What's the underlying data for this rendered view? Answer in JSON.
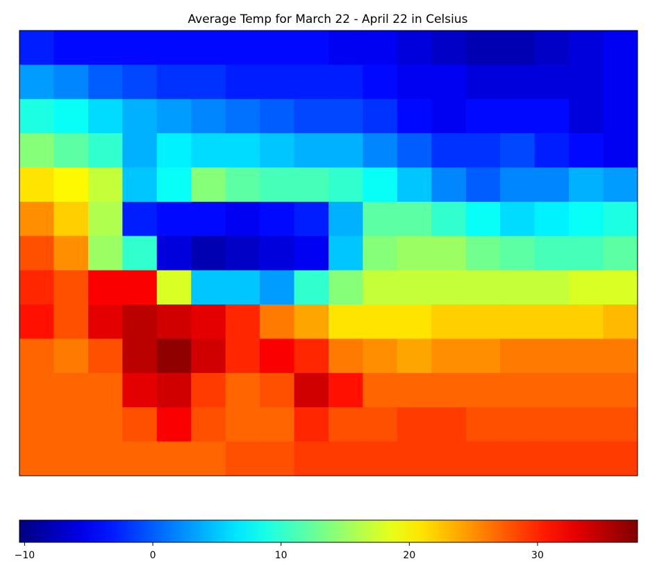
{
  "chart_data": {
    "type": "heatmap",
    "title": "Average Temp for March 22 - April 22 in Celsius",
    "colormap": "jet",
    "clim": [
      -10.4,
      37.8
    ],
    "colorbar_ticks": [
      {
        "value": -10,
        "label": "−10"
      },
      0,
      10,
      20,
      30
    ],
    "values": [
      [
        -3,
        -4,
        -4,
        -4,
        -4,
        -4,
        -4,
        -4,
        -4,
        -5,
        -5,
        -6,
        -7,
        -8,
        -8,
        -7,
        -6,
        -5
      ],
      [
        3,
        2,
        0,
        -1,
        -2,
        -2,
        -3,
        -3,
        -3,
        -3,
        -4,
        -5,
        -5,
        -6,
        -6,
        -6,
        -6,
        -5
      ],
      [
        9,
        8,
        6,
        4,
        3,
        2,
        1,
        0,
        -1,
        -1,
        -2,
        -4,
        -5,
        -4,
        -4,
        -4,
        -6,
        -5
      ],
      [
        14,
        12,
        10,
        4,
        7,
        6,
        6,
        5,
        4,
        4,
        2,
        0,
        -2,
        -2,
        -1,
        -3,
        -4,
        -5
      ],
      [
        21,
        20,
        17,
        5,
        8,
        14,
        12,
        11,
        11,
        10,
        8,
        5,
        2,
        0,
        2,
        2,
        4,
        3
      ],
      [
        25,
        22,
        16,
        -3,
        -4,
        -4,
        -5,
        -4,
        -3,
        4,
        12,
        12,
        10,
        8,
        6,
        7,
        8,
        9
      ],
      [
        28,
        25,
        15,
        10,
        -6,
        -8,
        -7,
        -6,
        -5,
        5,
        14,
        15,
        15,
        13,
        12,
        11,
        11,
        12
      ],
      [
        30,
        28,
        32,
        32,
        18,
        5,
        5,
        3,
        10,
        14,
        17,
        17,
        17,
        17,
        17,
        17,
        18,
        18
      ],
      [
        31,
        28,
        33,
        35,
        34,
        33,
        30,
        26,
        24,
        21,
        21,
        21,
        22,
        22,
        22,
        22,
        22,
        23
      ],
      [
        27,
        26,
        28,
        35,
        37,
        34,
        30,
        32,
        30,
        26,
        25,
        24,
        25,
        25,
        26,
        26,
        26,
        26
      ],
      [
        27,
        27,
        27,
        33,
        34,
        29,
        27,
        28,
        34,
        31,
        27,
        27,
        27,
        27,
        27,
        27,
        27,
        27
      ],
      [
        27,
        27,
        27,
        28,
        32,
        28,
        27,
        27,
        30,
        28,
        28,
        29,
        29,
        28,
        28,
        28,
        28,
        28
      ],
      [
        27,
        27,
        27,
        27,
        27,
        27,
        28,
        28,
        29,
        29,
        29,
        29,
        29,
        29,
        29,
        29,
        29,
        29
      ]
    ]
  }
}
